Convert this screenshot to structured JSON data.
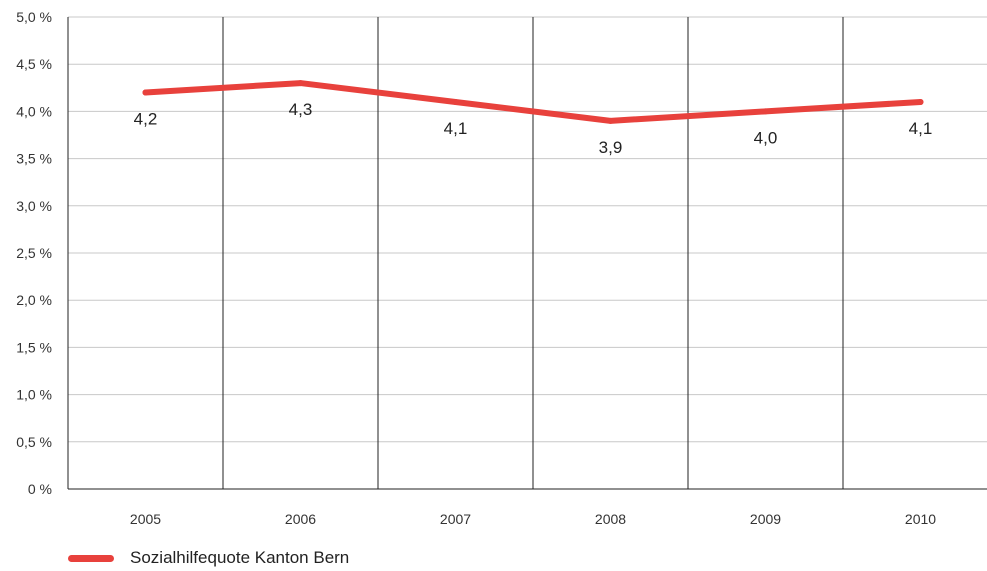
{
  "chart_data": {
    "type": "line",
    "categories": [
      "2005",
      "2006",
      "2007",
      "2008",
      "2009",
      "2010"
    ],
    "series": [
      {
        "name": "Sozialhilfequote Kanton Bern",
        "values": [
          4.2,
          4.3,
          4.1,
          3.9,
          4.0,
          4.1
        ],
        "color": "#e8413c"
      }
    ],
    "data_labels": [
      "4,2",
      "4,3",
      "4,1",
      "3,9",
      "4,0",
      "4,1"
    ],
    "y_ticks": [
      0,
      0.5,
      1.0,
      1.5,
      2.0,
      2.5,
      3.0,
      3.5,
      4.0,
      4.5,
      5.0
    ],
    "y_tick_labels": [
      "0 %",
      "0,5 %",
      "1,0 %",
      "1,5 %",
      "2,0 %",
      "2,5 %",
      "3,0 %",
      "3,5 %",
      "4,0 %",
      "4,5 %",
      "5,0 %"
    ],
    "ylim": [
      0,
      5.0
    ],
    "grid": true,
    "legend_position": "bottom-left"
  },
  "legend": {
    "label": "Sozialhilfequote Kanton Bern",
    "color": "#e8413c"
  }
}
